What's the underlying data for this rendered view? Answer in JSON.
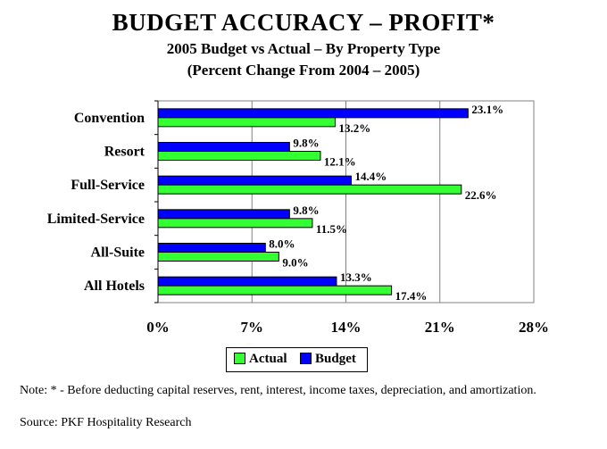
{
  "title": "BUDGET ACCURACY – PROFIT*",
  "subtitle1": "2005 Budget vs Actual – By Property Type",
  "subtitle2": "(Percent Change From 2004 – 2005)",
  "note": "Note: * - Before deducting capital reserves, rent, interest, income taxes, depreciation, and amortization.",
  "source": "Source: PKF Hospitality Research",
  "chart_data": {
    "type": "bar",
    "orientation": "horizontal",
    "categories": [
      "Convention",
      "Resort",
      "Full-Service",
      "Limited-Service",
      "All-Suite",
      "All Hotels"
    ],
    "series": [
      {
        "name": "Budget",
        "color": "#0000ff",
        "values": [
          23.1,
          9.8,
          14.4,
          9.8,
          8.0,
          13.3
        ],
        "labels": [
          "23.1%",
          "9.8%",
          "14.4%",
          "9.8%",
          "8.0%",
          "13.3%"
        ]
      },
      {
        "name": "Actual",
        "color": "#33ff33",
        "values": [
          13.2,
          12.1,
          22.6,
          11.5,
          9.0,
          17.4
        ],
        "labels": [
          "13.2%",
          "12.1%",
          "22.6%",
          "11.5%",
          "9.0%",
          "17.4%"
        ]
      }
    ],
    "xlim": [
      0,
      28
    ],
    "xticks": [
      0,
      7,
      14,
      21,
      28
    ],
    "xtick_labels": [
      "0%",
      "7%",
      "14%",
      "21%",
      "28%"
    ],
    "grid": true,
    "legend": {
      "placement": "bottom",
      "items": [
        "Actual",
        "Budget"
      ]
    }
  }
}
